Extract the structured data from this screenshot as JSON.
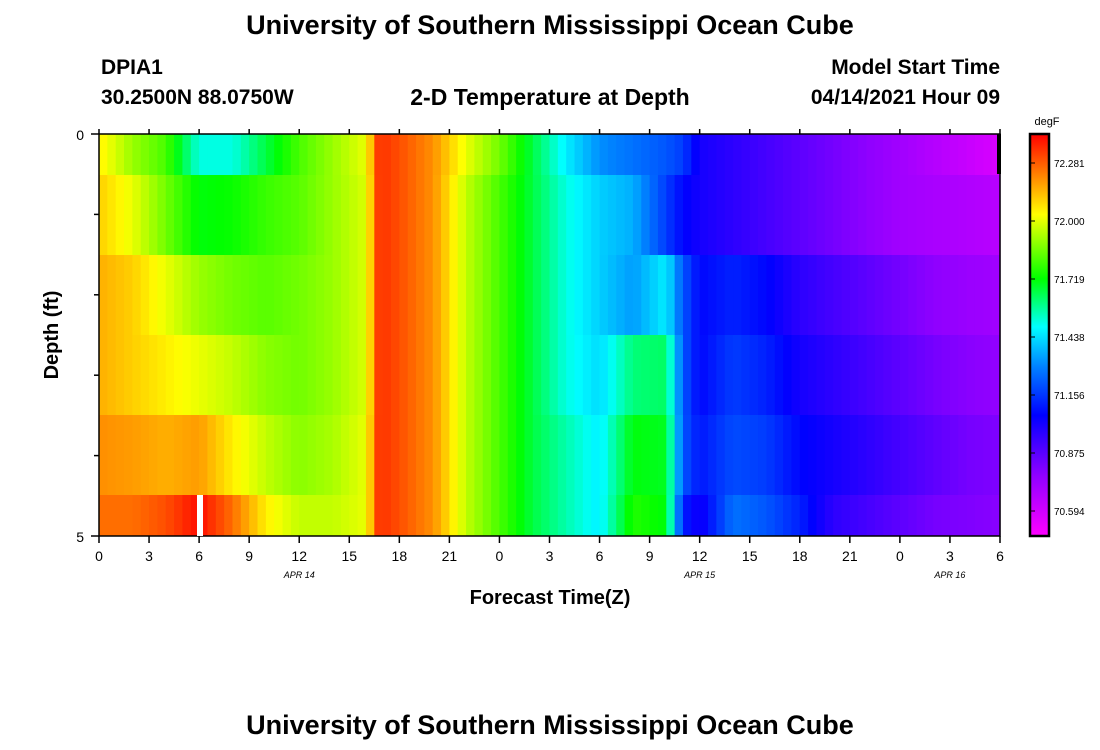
{
  "page": {
    "title_top": "University of Southern Mississippi Ocean Cube",
    "title_bottom": "University of Southern Mississippi Ocean Cube",
    "station": "DPIA1",
    "coords": "30.2500N  88.0750W",
    "subtitle": "2-D Temperature at Depth",
    "model_label": "Model Start Time",
    "model_time": "04/14/2021 Hour 09"
  },
  "chart_data": {
    "type": "heatmap",
    "title": "2-D Temperature at Depth",
    "xlabel": "Forecast Time(Z)",
    "ylabel": "Depth (ft)",
    "x_hours_range": [
      0,
      54
    ],
    "x_tick_labels": [
      "0",
      "3",
      "6",
      "9",
      "12",
      "15",
      "18",
      "21",
      "0",
      "3",
      "6",
      "9",
      "12",
      "15",
      "18",
      "21",
      "0",
      "3",
      "6"
    ],
    "y_tick_labels": [
      "0",
      "5"
    ],
    "y_range_ft": [
      0,
      5
    ],
    "date_labels": [
      {
        "text": "APR 14",
        "hour": 12
      },
      {
        "text": "APR 15",
        "hour": 36
      },
      {
        "text": "APR 16",
        "hour": 51
      }
    ],
    "colorbar": {
      "unit": "degF",
      "min": 70.45,
      "max": 72.42,
      "ticks": [
        "72.281",
        "72.000",
        "71.719",
        "71.438",
        "71.156",
        "70.875",
        "70.594"
      ]
    },
    "layers_depth_ft": [
      "0.0-0.5",
      "0.5-1.5",
      "1.5-2.5",
      "2.5-3.5",
      "3.5-4.5",
      "4.5-5.0"
    ],
    "temperature_anchors": {
      "hours": [
        0,
        2,
        4,
        6,
        8,
        10,
        12,
        14,
        16,
        16.8,
        18,
        20,
        22,
        24,
        26,
        28,
        30,
        32,
        34,
        35,
        36,
        38,
        40,
        42,
        44,
        46,
        48,
        50,
        52,
        54
      ],
      "layers": [
        [
          72.05,
          71.9,
          71.8,
          71.5,
          71.5,
          71.65,
          71.8,
          71.9,
          72.0,
          72.35,
          72.3,
          72.2,
          72.0,
          71.85,
          71.65,
          71.45,
          71.3,
          71.25,
          71.2,
          71.15,
          71.0,
          70.95,
          70.9,
          70.85,
          70.8,
          70.75,
          70.7,
          70.65,
          70.6,
          70.55
        ],
        [
          72.1,
          72.0,
          71.85,
          71.7,
          71.72,
          71.78,
          71.82,
          71.9,
          71.98,
          72.35,
          72.3,
          72.2,
          71.95,
          71.8,
          71.65,
          71.5,
          71.4,
          71.35,
          71.15,
          71.05,
          71.0,
          70.95,
          70.9,
          70.85,
          70.8,
          70.75,
          70.7,
          70.68,
          70.66,
          70.64
        ],
        [
          72.15,
          72.1,
          72.0,
          71.9,
          71.85,
          71.82,
          71.85,
          71.9,
          71.98,
          72.35,
          72.3,
          72.2,
          71.95,
          71.8,
          71.65,
          71.5,
          71.4,
          71.32,
          71.45,
          71.2,
          71.05,
          71.1,
          71.05,
          70.95,
          70.9,
          70.85,
          70.8,
          70.75,
          70.72,
          70.7
        ],
        [
          72.15,
          72.1,
          72.05,
          72.0,
          71.95,
          71.88,
          71.85,
          71.9,
          71.98,
          72.35,
          72.3,
          72.2,
          71.95,
          71.8,
          71.65,
          71.5,
          71.42,
          71.6,
          71.62,
          71.2,
          71.05,
          71.15,
          71.1,
          71.0,
          70.95,
          70.9,
          70.85,
          70.8,
          70.76,
          70.74
        ],
        [
          72.2,
          72.18,
          72.15,
          72.18,
          72.05,
          71.95,
          71.88,
          71.92,
          72.0,
          72.35,
          72.3,
          72.2,
          71.95,
          71.8,
          71.65,
          71.55,
          71.45,
          71.7,
          71.68,
          71.2,
          71.08,
          71.18,
          71.15,
          71.05,
          71.0,
          70.95,
          70.9,
          70.85,
          70.8,
          70.78
        ],
        [
          72.25,
          72.25,
          72.3,
          72.4,
          72.25,
          72.05,
          71.95,
          71.95,
          72.0,
          72.35,
          72.3,
          72.2,
          71.95,
          71.8,
          71.65,
          71.55,
          71.45,
          71.75,
          71.7,
          71.1,
          71.0,
          71.25,
          71.2,
          71.1,
          70.95,
          70.9,
          70.85,
          70.8,
          70.78,
          70.76
        ]
      ]
    }
  }
}
